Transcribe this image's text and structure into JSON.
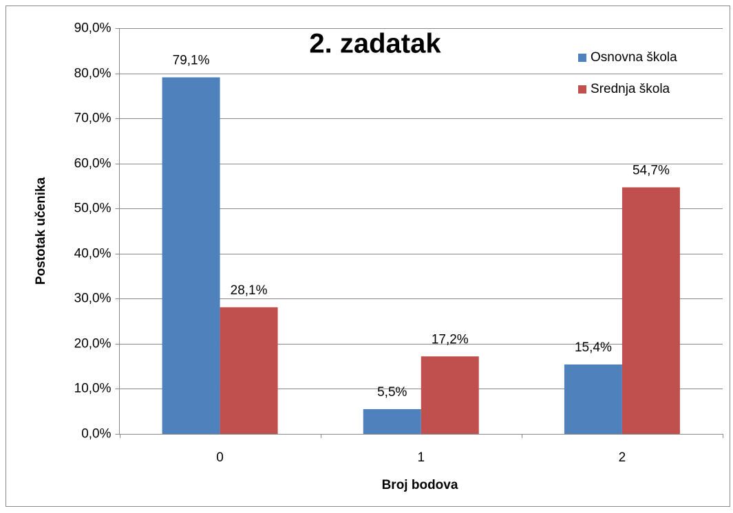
{
  "chart_data": {
    "type": "bar",
    "title": "2. zadatak",
    "x_label": "Broj bodova",
    "y_label": "Postotak učenika",
    "categories": [
      "0",
      "1",
      "2"
    ],
    "series": [
      {
        "name": "Osnovna škola",
        "color": "#4f81bd",
        "values": [
          79.1,
          5.5,
          15.4
        ],
        "value_labels": [
          "79,1%",
          "5,5%",
          "15,4%"
        ]
      },
      {
        "name": "Srednja škola",
        "color": "#c0504d",
        "values": [
          28.1,
          17.2,
          54.7
        ],
        "value_labels": [
          "28,1%",
          "17,2%",
          "54,7%"
        ]
      }
    ],
    "ylim": [
      0,
      90
    ],
    "yticks": [
      {
        "value": 0,
        "label": "0,0%"
      },
      {
        "value": 10,
        "label": "10,0%"
      },
      {
        "value": 20,
        "label": "20,0%"
      },
      {
        "value": 30,
        "label": "30,0%"
      },
      {
        "value": 40,
        "label": "40,0%"
      },
      {
        "value": 50,
        "label": "50,0%"
      },
      {
        "value": 60,
        "label": "60,0%"
      },
      {
        "value": 70,
        "label": "70,0%"
      },
      {
        "value": 80,
        "label": "80,0%"
      },
      {
        "value": 90,
        "label": "90,0%"
      }
    ],
    "grid": true,
    "legend": "top-right"
  }
}
